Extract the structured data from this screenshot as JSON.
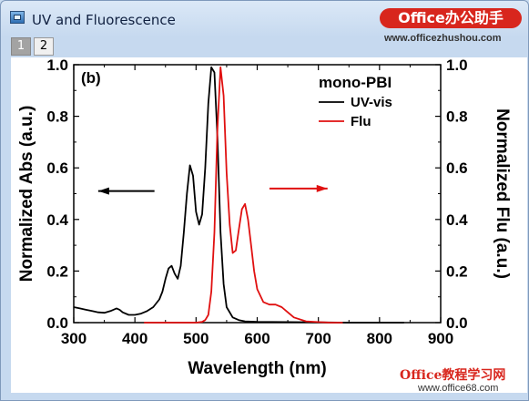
{
  "window": {
    "title": "UV and Fluorescence",
    "banner": "Office办公助手",
    "banner_url": "www.officezhushou.com",
    "footer_watermark": "Office教程学习网",
    "footer_url": "www.office68.com"
  },
  "tabs": [
    {
      "label": "1",
      "active": true
    },
    {
      "label": "2",
      "active": false
    }
  ],
  "chart_data": {
    "type": "line",
    "panel_label": "(b)",
    "legend_title": "mono-PBI",
    "xlabel": "Wavelength (nm)",
    "ylabel_left": "Normalized Abs (a.u.)",
    "ylabel_right": "Normalized Flu (a.u.)",
    "xlim": [
      300,
      900
    ],
    "ylim": [
      0,
      1.0
    ],
    "x_ticks": [
      "300",
      "400",
      "500",
      "600",
      "700",
      "800",
      "900"
    ],
    "y_ticks": [
      "0.0",
      "0.2",
      "0.4",
      "0.6",
      "0.8",
      "1.0"
    ],
    "legend_placement": "top-right",
    "grid": false,
    "series": [
      {
        "name": "UV-vis",
        "color": "#000000",
        "x": [
          300,
          310,
          320,
          330,
          340,
          350,
          360,
          370,
          375,
          380,
          390,
          400,
          410,
          420,
          430,
          440,
          445,
          450,
          455,
          460,
          465,
          470,
          475,
          480,
          485,
          490,
          495,
          500,
          505,
          510,
          515,
          520,
          525,
          530,
          535,
          540,
          545,
          550,
          560,
          570,
          580,
          600,
          650,
          700,
          750,
          800,
          840
        ],
        "y": [
          0.06,
          0.055,
          0.05,
          0.045,
          0.04,
          0.038,
          0.045,
          0.055,
          0.05,
          0.04,
          0.03,
          0.03,
          0.035,
          0.045,
          0.06,
          0.09,
          0.12,
          0.17,
          0.21,
          0.22,
          0.19,
          0.17,
          0.22,
          0.35,
          0.5,
          0.61,
          0.57,
          0.43,
          0.38,
          0.42,
          0.6,
          0.85,
          0.99,
          0.97,
          0.72,
          0.35,
          0.15,
          0.06,
          0.02,
          0.01,
          0.005,
          0.003,
          0.002,
          0.001,
          0.0,
          0.0,
          0.0
        ]
      },
      {
        "name": "Flu",
        "color": "#e01010",
        "x": [
          415,
          460,
          500,
          510,
          515,
          520,
          525,
          530,
          535,
          540,
          545,
          550,
          555,
          560,
          565,
          570,
          575,
          580,
          585,
          590,
          595,
          600,
          610,
          620,
          630,
          640,
          650,
          660,
          680,
          700,
          720,
          740
        ],
        "y": [
          0.0,
          0.0,
          0.0,
          0.003,
          0.01,
          0.03,
          0.12,
          0.35,
          0.75,
          0.99,
          0.88,
          0.58,
          0.38,
          0.27,
          0.28,
          0.36,
          0.44,
          0.46,
          0.4,
          0.3,
          0.2,
          0.13,
          0.08,
          0.07,
          0.07,
          0.06,
          0.04,
          0.02,
          0.005,
          0.002,
          0.0,
          0.0
        ]
      }
    ],
    "arrows": [
      {
        "series": "UV-vis",
        "direction": "left",
        "color": "#000000"
      },
      {
        "series": "Flu",
        "direction": "right",
        "color": "#e01010"
      }
    ]
  }
}
